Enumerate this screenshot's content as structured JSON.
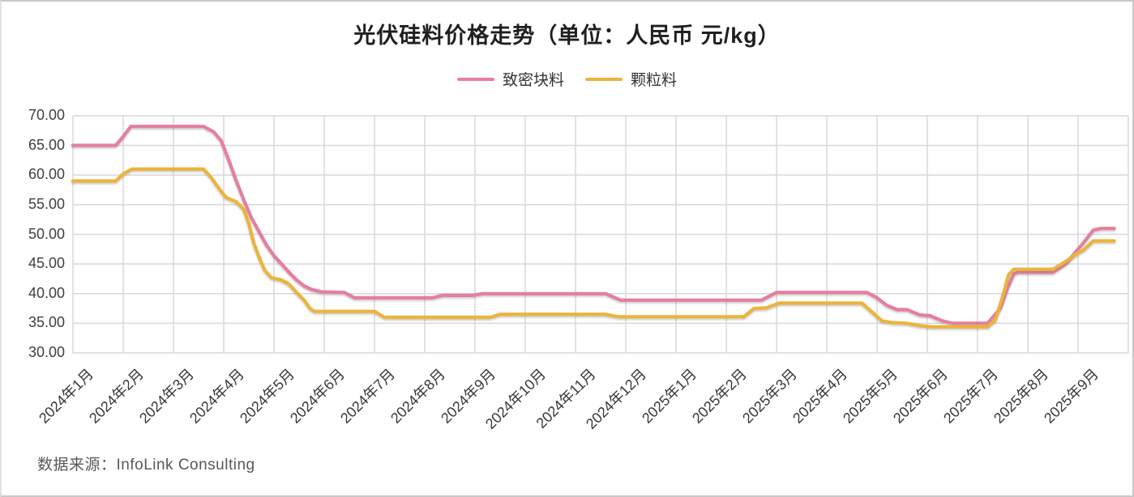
{
  "page": {
    "source": "数据来源：InfoLink Consulting"
  },
  "chart_data": {
    "type": "line",
    "title": "光伏硅料价格走势（单位：人民币 元/kg）",
    "xlabel": "",
    "ylabel": "",
    "ylim": [
      30,
      70
    ],
    "yticks": [
      "30.00",
      "35.00",
      "40.00",
      "45.00",
      "50.00",
      "55.00",
      "60.00",
      "65.00",
      "70.00"
    ],
    "grid": true,
    "grid_color": "#d8d8d8",
    "text_color": "#404040",
    "legend_position": "top-center",
    "x_unit": "month (fractional index into categories, weekly data)",
    "categories": [
      "2024年1月",
      "2024年2月",
      "2024年3月",
      "2024年4月",
      "2024年5月",
      "2024年6月",
      "2024年7月",
      "2024年8月",
      "2024年9月",
      "2024年10月",
      "2024年11月",
      "2024年12月",
      "2025年1月",
      "2025年2月",
      "2025年3月",
      "2025年4月",
      "2025年5月",
      "2025年6月",
      "2025年7月",
      "2025年8月",
      "2025年9月"
    ],
    "series": [
      {
        "id": "dense-chunk",
        "name": "致密块料",
        "color": "#e57f9f",
        "points": [
          [
            0,
            65
          ],
          [
            0.85,
            65
          ],
          [
            1.0,
            66.5
          ],
          [
            1.15,
            68.2
          ],
          [
            2.6,
            68.2
          ],
          [
            2.8,
            67.3
          ],
          [
            2.95,
            65.8
          ],
          [
            3.1,
            62.5
          ],
          [
            3.25,
            59.0
          ],
          [
            3.4,
            55.8
          ],
          [
            3.55,
            52.8
          ],
          [
            3.7,
            50.5
          ],
          [
            3.85,
            48.2
          ],
          [
            4.0,
            46.4
          ],
          [
            4.15,
            45.0
          ],
          [
            4.3,
            43.6
          ],
          [
            4.45,
            42.3
          ],
          [
            4.6,
            41.3
          ],
          [
            4.75,
            40.7
          ],
          [
            4.95,
            40.3
          ],
          [
            5.4,
            40.2
          ],
          [
            5.6,
            39.3
          ],
          [
            7.15,
            39.3
          ],
          [
            7.35,
            39.7
          ],
          [
            7.95,
            39.7
          ],
          [
            8.15,
            40.0
          ],
          [
            10.6,
            40.0
          ],
          [
            10.9,
            38.9
          ],
          [
            13.7,
            38.9
          ],
          [
            14.0,
            40.2
          ],
          [
            15.8,
            40.2
          ],
          [
            16.0,
            39.3
          ],
          [
            16.2,
            38.0
          ],
          [
            16.4,
            37.3
          ],
          [
            16.6,
            37.3
          ],
          [
            16.85,
            36.4
          ],
          [
            17.05,
            36.3
          ],
          [
            17.3,
            35.4
          ],
          [
            17.5,
            35.0
          ],
          [
            18.2,
            35.0
          ],
          [
            18.45,
            37.5
          ],
          [
            18.6,
            41.0
          ],
          [
            18.72,
            43.3
          ],
          [
            18.8,
            43.6
          ],
          [
            19.5,
            43.6
          ],
          [
            19.75,
            45.0
          ],
          [
            19.95,
            47.0
          ],
          [
            20.1,
            48.5
          ],
          [
            20.3,
            50.7
          ],
          [
            20.45,
            51.0
          ],
          [
            20.72,
            51.0
          ]
        ]
      },
      {
        "id": "granular",
        "name": "颗粒料",
        "color": "#ecb43c",
        "points": [
          [
            0,
            59
          ],
          [
            0.85,
            59
          ],
          [
            1.0,
            60.2
          ],
          [
            1.17,
            61.0
          ],
          [
            2.6,
            61.0
          ],
          [
            2.75,
            59.6
          ],
          [
            2.9,
            57.8
          ],
          [
            3.05,
            56.2
          ],
          [
            3.25,
            55.5
          ],
          [
            3.4,
            54.2
          ],
          [
            3.5,
            51.8
          ],
          [
            3.6,
            48.5
          ],
          [
            3.72,
            45.8
          ],
          [
            3.82,
            43.9
          ],
          [
            3.95,
            42.7
          ],
          [
            4.15,
            42.3
          ],
          [
            4.3,
            41.6
          ],
          [
            4.45,
            40.2
          ],
          [
            4.6,
            38.9
          ],
          [
            4.72,
            37.5
          ],
          [
            4.8,
            37.0
          ],
          [
            6.0,
            37.0
          ],
          [
            6.2,
            36.0
          ],
          [
            8.3,
            36.0
          ],
          [
            8.5,
            36.5
          ],
          [
            10.6,
            36.5
          ],
          [
            10.85,
            36.1
          ],
          [
            13.35,
            36.1
          ],
          [
            13.55,
            37.5
          ],
          [
            13.8,
            37.6
          ],
          [
            14.05,
            38.4
          ],
          [
            15.7,
            38.4
          ],
          [
            15.9,
            36.9
          ],
          [
            16.1,
            35.4
          ],
          [
            16.3,
            35.1
          ],
          [
            16.6,
            35.0
          ],
          [
            16.85,
            34.6
          ],
          [
            17.1,
            34.4
          ],
          [
            18.2,
            34.4
          ],
          [
            18.35,
            35.5
          ],
          [
            18.5,
            39.5
          ],
          [
            18.62,
            43.2
          ],
          [
            18.72,
            44.1
          ],
          [
            19.5,
            44.1
          ],
          [
            19.75,
            45.4
          ],
          [
            19.95,
            46.6
          ],
          [
            20.1,
            47.3
          ],
          [
            20.3,
            48.9
          ],
          [
            20.72,
            48.9
          ]
        ]
      }
    ]
  }
}
